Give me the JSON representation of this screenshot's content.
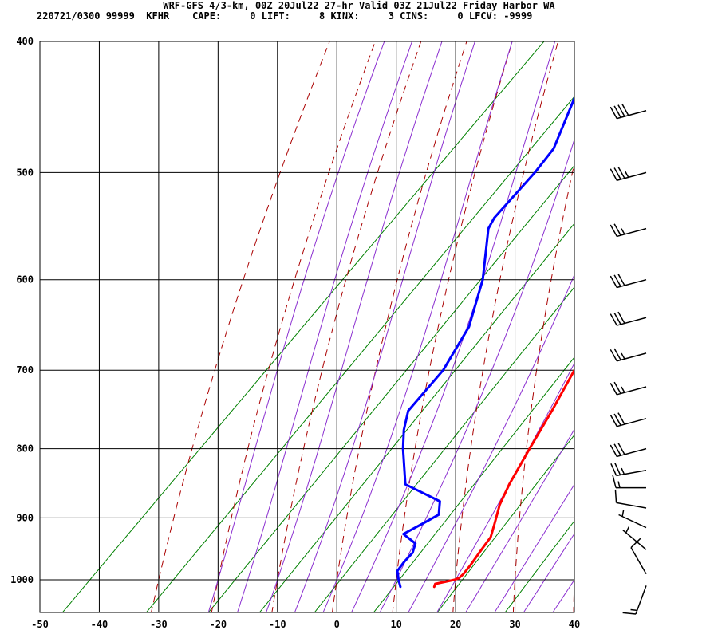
{
  "header": {
    "title": "WRF-GFS 4/3-km, 00Z 20Jul22 27-hr Valid 03Z 21Jul22 Friday Harbor WA",
    "stats": "220721/0300 99999  KFHR    CAPE:     0 LIFT:     8 KINX:     3 CINS:     0 LFCV: -9999"
  },
  "chart_data": {
    "type": "line",
    "title": "WRF-GFS 4/3-km, 00Z 20Jul22 27-hr Valid 03Z 21Jul22 Friday Harbor WA",
    "x_axis": {
      "label": "",
      "range": [
        -50,
        40
      ],
      "ticks": [
        -50,
        -40,
        -30,
        -20,
        -10,
        0,
        10,
        20,
        30,
        40
      ]
    },
    "y_axis": {
      "label": "",
      "scale": "log",
      "range": [
        1030,
        400
      ],
      "ticks": [
        400,
        500,
        600,
        700,
        800,
        900,
        1000
      ]
    },
    "grid": true,
    "colors": {
      "temperature": "#ff0000",
      "dewpoint": "#0000ff",
      "dry_adiabat": "#aa0000",
      "moist_adiabat": "#8b2fd0",
      "mixing_ratio": "#008000",
      "grid": "#000000"
    },
    "series": [
      {
        "key": "temperature",
        "p": [
          1012,
          1007,
          1000,
          997,
          990,
          975,
          950,
          930,
          910,
          880,
          850,
          800,
          750,
          700,
          650,
          600,
          550,
          500,
          450,
          420
        ],
        "t": [
          17.5,
          17.2,
          19.8,
          20.3,
          20.4,
          20.2,
          19.6,
          19.2,
          17.8,
          15.6,
          14.0,
          11.8,
          9.6,
          7.0,
          3.8,
          0.4,
          -5.5,
          -10.5,
          -16.8,
          -20.5
        ]
      },
      {
        "key": "dewpoint",
        "p": [
          1012,
          1000,
          985,
          970,
          955,
          940,
          925,
          910,
          895,
          875,
          850,
          800,
          775,
          750,
          700,
          650,
          600,
          550,
          540,
          500,
          480,
          420
        ],
        "t": [
          11.8,
          10.4,
          8.8,
          8.5,
          8.5,
          7.5,
          4.0,
          5.5,
          6.9,
          5.0,
          -3.5,
          -9.5,
          -12.3,
          -14.6,
          -15.1,
          -17.6,
          -22.7,
          -29.8,
          -30.5,
          -30.8,
          -31.4,
          -38.3
        ]
      }
    ],
    "reference_lines": {
      "dry_adiabats_theta_c": [
        -30,
        -20,
        -10,
        0,
        10,
        20,
        30,
        40,
        50,
        60,
        70,
        80,
        90,
        100,
        110
      ],
      "moist_adiabats_thetaw_c": [
        -20,
        -15,
        -10,
        -5,
        0,
        5,
        10,
        15,
        20,
        25,
        30,
        35,
        40
      ],
      "mixing_ratio_gkg": [
        0.1,
        0.4,
        1,
        2,
        4,
        8,
        16,
        32
      ]
    },
    "wind_barbs": [
      {
        "p": 1010,
        "dir": 200,
        "kt": 15
      },
      {
        "p": 990,
        "dir": 330,
        "kt": 10
      },
      {
        "p": 950,
        "dir": 310,
        "kt": 5
      },
      {
        "p": 915,
        "dir": 295,
        "kt": 5
      },
      {
        "p": 885,
        "dir": 280,
        "kt": 10
      },
      {
        "p": 855,
        "dir": 270,
        "kt": 15
      },
      {
        "p": 830,
        "dir": 260,
        "kt": 25
      },
      {
        "p": 800,
        "dir": 255,
        "kt": 30
      },
      {
        "p": 760,
        "dir": 255,
        "kt": 30
      },
      {
        "p": 720,
        "dir": 255,
        "kt": 25
      },
      {
        "p": 680,
        "dir": 255,
        "kt": 25
      },
      {
        "p": 640,
        "dir": 255,
        "kt": 30
      },
      {
        "p": 600,
        "dir": 255,
        "kt": 30
      },
      {
        "p": 550,
        "dir": 255,
        "kt": 25
      },
      {
        "p": 500,
        "dir": 255,
        "kt": 35
      },
      {
        "p": 450,
        "dir": 255,
        "kt": 40
      }
    ]
  }
}
